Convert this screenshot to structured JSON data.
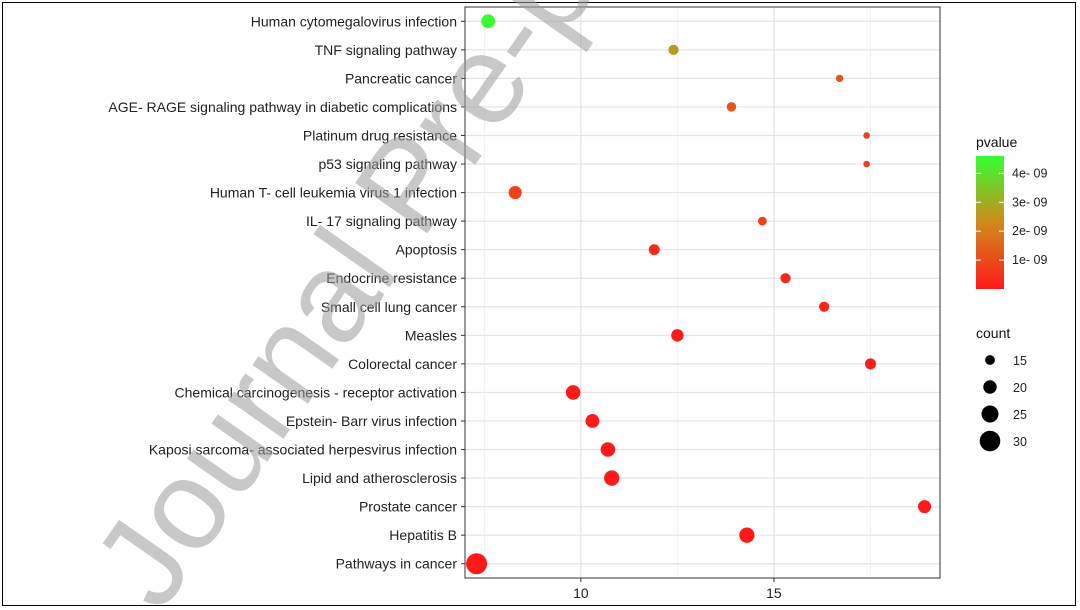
{
  "watermark": "Journal Pre-proof",
  "chart_data": {
    "type": "scatter",
    "x_ticks": [
      10,
      15
    ],
    "xlim": [
      7.0,
      19.3
    ],
    "categories": [
      "Human cytomegalovirus infection",
      "TNF signaling pathway",
      "Pancreatic cancer",
      "AGE- RAGE signaling pathway in diabetic complications",
      "Platinum drug resistance",
      "p53 signaling pathway",
      "Human T- cell leukemia virus 1 infection",
      "IL- 17 signaling pathway",
      "Apoptosis",
      "Endocrine resistance",
      "Small cell lung cancer",
      "Measles",
      "Colorectal cancer",
      "Chemical carcinogenesis -  receptor activation",
      "Epstein- Barr virus infection",
      "Kaposi sarcoma- associated herpesvirus infection",
      "Lipid and atherosclerosis",
      "Prostate cancer",
      "Hepatitis B",
      "Pathways in cancer"
    ],
    "points": [
      {
        "term": "Human cytomegalovirus infection",
        "x": 7.6,
        "count": 22,
        "pvalue": 4.5e-09
      },
      {
        "term": "TNF signaling pathway",
        "x": 12.4,
        "count": 17,
        "pvalue": 2.6e-09
      },
      {
        "term": "Pancreatic cancer",
        "x": 16.7,
        "count": 13,
        "pvalue": 1.2e-09
      },
      {
        "term": "AGE- RAGE signaling pathway in diabetic complications",
        "x": 13.9,
        "count": 16,
        "pvalue": 1.3e-09
      },
      {
        "term": "Platinum drug resistance",
        "x": 17.4,
        "count": 12,
        "pvalue": 8e-10
      },
      {
        "term": "p53 signaling pathway",
        "x": 17.4,
        "count": 12,
        "pvalue": 8e-10
      },
      {
        "term": "Human T- cell leukemia virus 1 infection",
        "x": 8.3,
        "count": 21,
        "pvalue": 8e-10
      },
      {
        "term": "IL- 17 signaling pathway",
        "x": 14.7,
        "count": 15,
        "pvalue": 8e-10
      },
      {
        "term": "Apoptosis",
        "x": 11.9,
        "count": 18,
        "pvalue": 3e-10
      },
      {
        "term": "Endocrine resistance",
        "x": 15.3,
        "count": 17,
        "pvalue": 3e-10
      },
      {
        "term": "Small cell lung cancer",
        "x": 16.3,
        "count": 17,
        "pvalue": 2e-10
      },
      {
        "term": "Measles",
        "x": 12.5,
        "count": 20,
        "pvalue": 5e-11
      },
      {
        "term": "Colorectal cancer",
        "x": 17.5,
        "count": 18,
        "pvalue": 5e-11
      },
      {
        "term": "Chemical carcinogenesis -  receptor activation",
        "x": 9.8,
        "count": 23,
        "pvalue": 2e-11
      },
      {
        "term": "Epstein- Barr virus infection",
        "x": 10.3,
        "count": 22,
        "pvalue": 2e-11
      },
      {
        "term": "Kaposi sarcoma- associated herpesvirus infection",
        "x": 10.7,
        "count": 23,
        "pvalue": 1e-11
      },
      {
        "term": "Lipid and atherosclerosis",
        "x": 10.8,
        "count": 24,
        "pvalue": 1e-11
      },
      {
        "term": "Prostate cancer",
        "x": 18.9,
        "count": 21,
        "pvalue": 1e-11
      },
      {
        "term": "Hepatitis B",
        "x": 14.3,
        "count": 24,
        "pvalue": 1e-11
      },
      {
        "term": "Pathways in cancer",
        "x": 7.3,
        "count": 32,
        "pvalue": 1e-12
      }
    ],
    "legend_pvalue": {
      "title": "pvalue",
      "range": [
        0,
        4.6e-09
      ],
      "ticks": [
        {
          "value": 4e-09,
          "label": "4e- 09"
        },
        {
          "value": 3e-09,
          "label": "3e- 09"
        },
        {
          "value": 2e-09,
          "label": "2e- 09"
        },
        {
          "value": 1e-09,
          "label": "1e- 09"
        }
      ],
      "color_low": "#ff1a1a",
      "color_mid": "#d08a1a",
      "color_high": "#33ff33"
    },
    "legend_count": {
      "title": "count",
      "values": [
        15,
        20,
        25,
        30
      ]
    },
    "grid": true,
    "panel_background": "#ffffff",
    "grid_color": "#e3e3e3"
  }
}
